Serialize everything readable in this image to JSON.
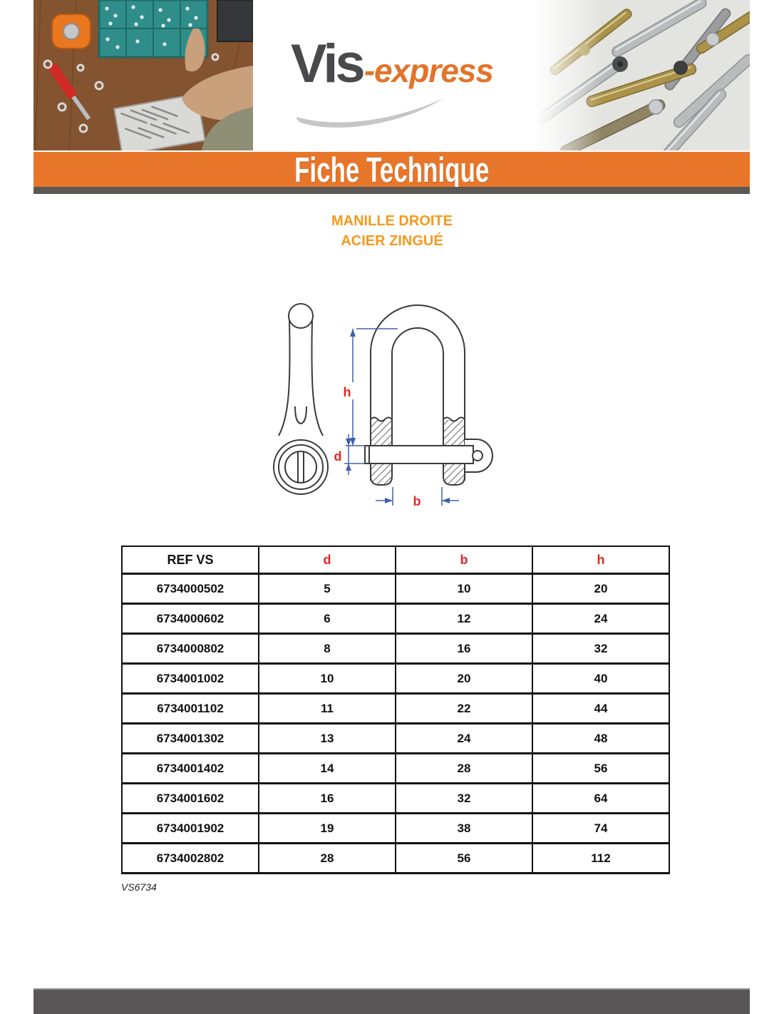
{
  "document": {
    "brand": {
      "name_primary": "Vis",
      "name_secondary": "-express"
    },
    "banner": {
      "title": "Fiche Technique",
      "color": "#E8762A"
    },
    "product": {
      "title_line1": "MANILLE DROITE",
      "title_line2": "ACIER ZINGUÉ",
      "title_color": "#F5991D"
    },
    "diagram": {
      "labels": {
        "h": "h",
        "d": "d",
        "b": "b"
      },
      "dimension_line_color": "#4060AA",
      "label_color": "#E52620"
    },
    "table": {
      "headers": [
        "REF VS",
        "d",
        "b",
        "h"
      ],
      "header_colors": [
        "#000000",
        "#E52620",
        "#E52620",
        "#E52620"
      ],
      "rows": [
        [
          "6734000502",
          "5",
          "10",
          "20"
        ],
        [
          "6734000602",
          "6",
          "12",
          "24"
        ],
        [
          "6734000802",
          "8",
          "16",
          "32"
        ],
        [
          "6734001002",
          "10",
          "20",
          "40"
        ],
        [
          "6734001102",
          "11",
          "22",
          "44"
        ],
        [
          "6734001302",
          "13",
          "24",
          "48"
        ],
        [
          "6734001402",
          "14",
          "28",
          "56"
        ],
        [
          "6734001602",
          "16",
          "32",
          "64"
        ],
        [
          "6734001902",
          "19",
          "38",
          "74"
        ],
        [
          "6734002802",
          "28",
          "56",
          "112"
        ]
      ]
    },
    "footnote": "VS6734"
  }
}
